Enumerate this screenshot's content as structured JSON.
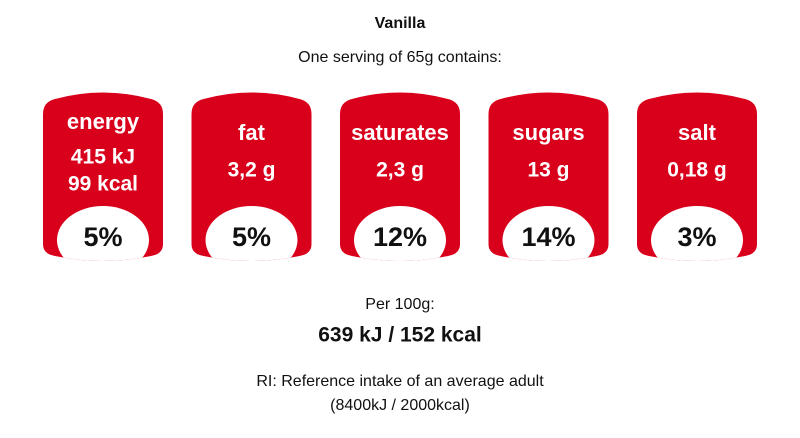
{
  "header": {
    "title": "Vanilla",
    "subtitle": "One serving of 65g contains:"
  },
  "items": [
    {
      "label": "energy",
      "amounts": [
        "415 kJ",
        "99 kcal"
      ],
      "percent": "5%"
    },
    {
      "label": "fat",
      "amounts": [
        "3,2 g"
      ],
      "percent": "5%"
    },
    {
      "label": "saturates",
      "amounts": [
        "2,3 g"
      ],
      "percent": "12%"
    },
    {
      "label": "sugars",
      "amounts": [
        "13 g"
      ],
      "percent": "14%"
    },
    {
      "label": "salt",
      "amounts": [
        "0,18 g"
      ],
      "percent": "3%"
    }
  ],
  "footer": {
    "per_label": "Per 100g:",
    "per_value": "639 kJ / 152 kcal",
    "note": [
      "RI: Reference intake of an average adult",
      "(8400kJ / 2000kcal)"
    ]
  }
}
